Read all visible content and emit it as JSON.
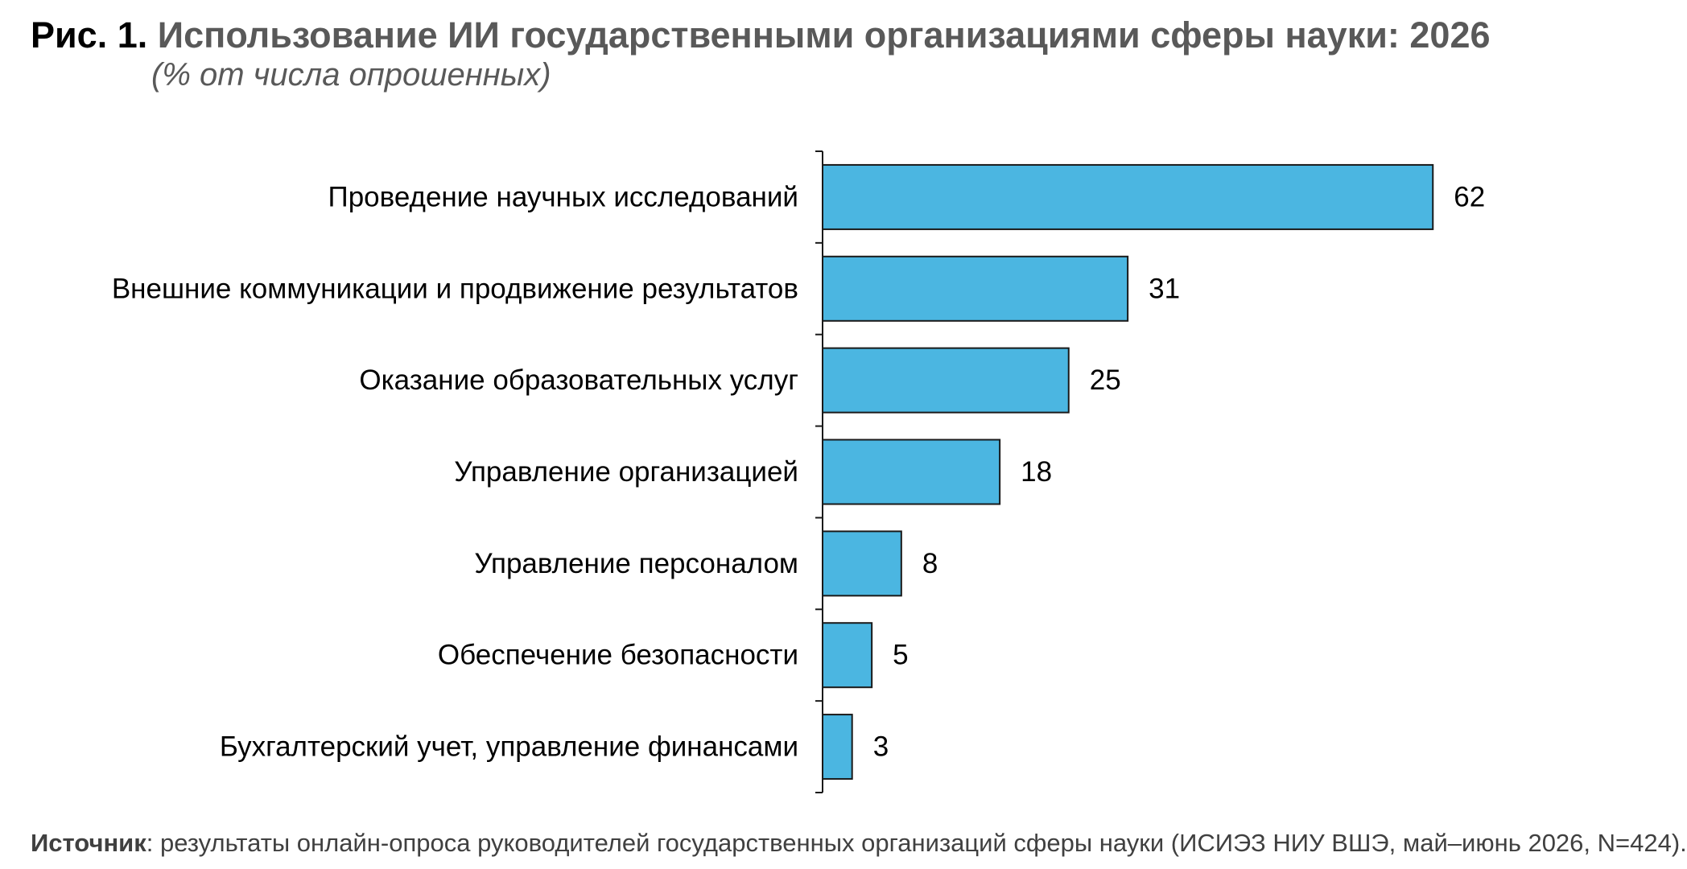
{
  "title": {
    "figure_label": "Рис. 1.",
    "text": "Использование ИИ государственными организациями сферы науки: 2026"
  },
  "subtitle": "(% от числа опрошенных)",
  "chart_data": {
    "type": "bar",
    "orientation": "horizontal",
    "title": "Использование ИИ государственными организациями сферы науки: 2026",
    "subtitle": "(% от числа опрошенных)",
    "categories": [
      "Проведение научных исследований",
      "Внешние коммуникации и продвижение результатов",
      "Оказание образовательных услуг",
      "Управление организацией",
      "Управление персоналом",
      "Обеспечение безопасности",
      "Бухгалтерский учет, управление финансами"
    ],
    "values": [
      62,
      31,
      25,
      18,
      8,
      5,
      3
    ],
    "xlim": [
      0,
      70
    ],
    "grid": false,
    "legend": "none",
    "bar_color": "#4BB6E1",
    "bar_outline_color": "#1A1A1A"
  },
  "footer": {
    "label": "Источник",
    "text": ": результаты онлайн-опроса руководителей государственных организаций сферы науки (ИСИЭЗ НИУ ВШЭ, май–июнь 2026, N=424)."
  }
}
